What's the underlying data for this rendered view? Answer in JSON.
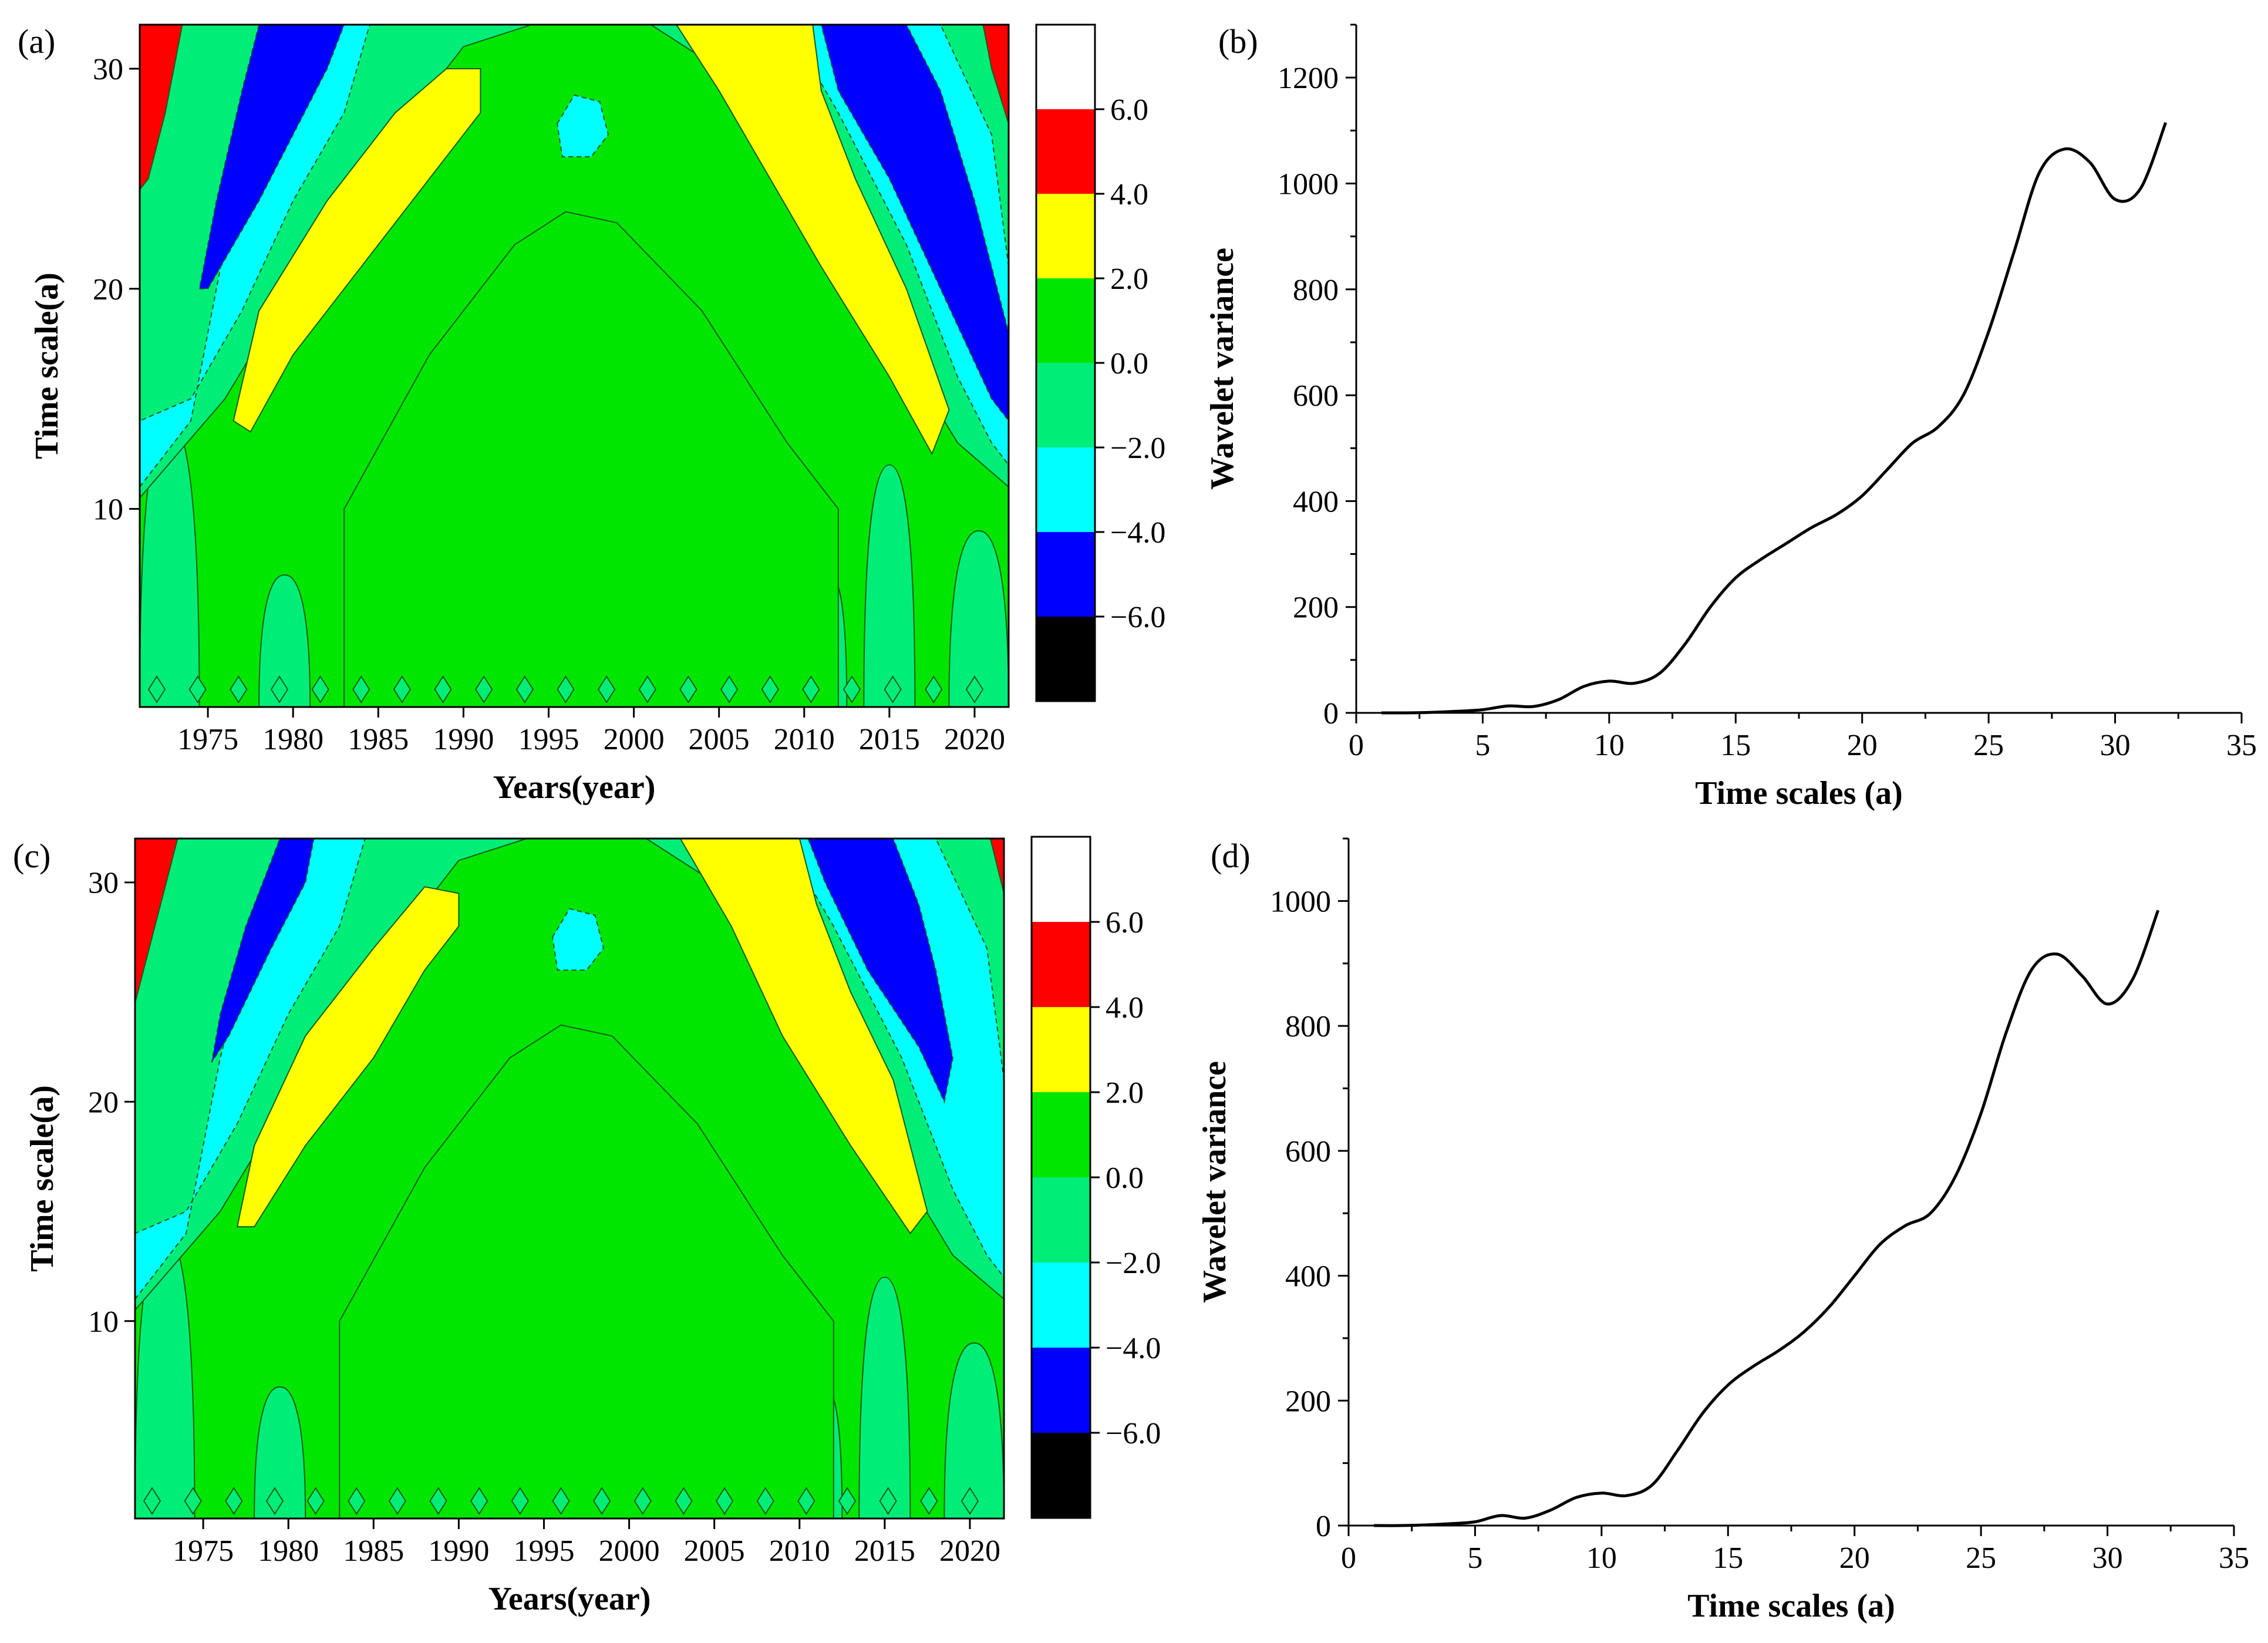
{
  "colors": {
    "white": "#ffffff",
    "red": "#ff0000",
    "yellow": "#ffff00",
    "green": "#00e600",
    "spring": "#00ee77",
    "cyan": "#00ffff",
    "blue": "#0000ff",
    "black": "#000000",
    "line": "#000000"
  },
  "chart_data": [
    {
      "id": "a",
      "type": "heatmap",
      "label": "(a)",
      "title": "",
      "xlabel": "Years(year)",
      "ylabel": "Time scale(a)",
      "xlim": [
        1971,
        2022
      ],
      "ylim": [
        1,
        32
      ],
      "xticks": [
        1975,
        1980,
        1985,
        1990,
        1995,
        2000,
        2005,
        2010,
        2015,
        2020
      ],
      "yticks": [
        10,
        20,
        30
      ],
      "colorbar": {
        "levels": [
          -8,
          -6,
          -4,
          -2,
          0,
          2,
          4,
          6,
          8
        ],
        "tick_labels": [
          "6.0",
          "4.0",
          "2.0",
          "0.0",
          "−2.0",
          "−4.0",
          "−6.0"
        ],
        "colors_bottom_to_top": [
          "#000000",
          "#0000ff",
          "#00ffff",
          "#00ee77",
          "#00e600",
          "#ffff00",
          "#ff0000",
          "#ffffff"
        ]
      },
      "contour_regions": [
        {
          "name": "yellow-left-band",
          "level": "2.0 to 4.0",
          "points": [
            [
              1976.5,
              14
            ],
            [
              1977.5,
              13.5
            ],
            [
              1980,
              17
            ],
            [
              1984,
              21
            ],
            [
              1988,
              25
            ],
            [
              1991,
              28
            ],
            [
              1991,
              30
            ],
            [
              1989,
              30
            ],
            [
              1986,
              28
            ],
            [
              1982,
              24
            ],
            [
              1978,
              19
            ]
          ]
        },
        {
          "name": "yellow-right-band",
          "level": "2.0 to 4.0",
          "points": [
            [
              2002.5,
              32
            ],
            [
              2010.5,
              32
            ],
            [
              2011,
              29
            ],
            [
              2013,
              25
            ],
            [
              2016,
              20
            ],
            [
              2018.5,
              14.5
            ],
            [
              2017.5,
              12.5
            ],
            [
              2015,
              16
            ],
            [
              2011,
              21
            ],
            [
              2008,
              25
            ],
            [
              2005,
              29
            ]
          ]
        },
        {
          "name": "blue-left-band",
          "level": "-4.0 to -6.0",
          "points": [
            [
              1978,
              32
            ],
            [
              1983,
              32
            ],
            [
              1982,
              30
            ],
            [
              1980,
              27
            ],
            [
              1978,
              24
            ],
            [
              1975,
              20
            ],
            [
              1974.5,
              20
            ],
            [
              1975.5,
              24
            ],
            [
              1977,
              29
            ]
          ]
        },
        {
          "name": "blue-right-band",
          "level": "-4.0 to -6.0",
          "points": [
            [
              2011,
              32
            ],
            [
              2016,
              32
            ],
            [
              2018,
              29
            ],
            [
              2020,
              24
            ],
            [
              2022,
              18
            ],
            [
              2022,
              14
            ],
            [
              2021,
              15
            ],
            [
              2018,
              20
            ],
            [
              2015,
              25
            ],
            [
              2012,
              29
            ]
          ]
        },
        {
          "name": "red-left-corner",
          "level": "4.0 to 6.0",
          "points": [
            [
              1971,
              32
            ],
            [
              1973.5,
              32
            ],
            [
              1972.5,
              28
            ],
            [
              1971.5,
              25
            ],
            [
              1971,
              24.5
            ]
          ]
        },
        {
          "name": "red-right-corner",
          "level": "4.0 to 6.0",
          "points": [
            [
              2020.5,
              32
            ],
            [
              2022,
              32
            ],
            [
              2022,
              27.5
            ],
            [
              2021,
              30
            ]
          ]
        },
        {
          "name": "cyan-center-eye",
          "level": "-2.0 to -4.0",
          "points": [
            [
              1995.5,
              27.5
            ],
            [
              1996.5,
              28.8
            ],
            [
              1998,
              28.5
            ],
            [
              1998.5,
              27
            ],
            [
              1997.5,
              26
            ],
            [
              1995.8,
              26
            ]
          ]
        }
      ]
    },
    {
      "id": "b",
      "type": "line",
      "label": "(b)",
      "title": "",
      "xlabel": "Time scales (a)",
      "ylabel": "Wavelet variance",
      "xlim": [
        0,
        35
      ],
      "ylim": [
        0,
        1300
      ],
      "xticks": [
        0,
        5,
        10,
        15,
        20,
        25,
        30,
        35
      ],
      "yticks": [
        0,
        200,
        400,
        600,
        800,
        1000,
        1200
      ],
      "series": [
        {
          "name": "Wavelet variance",
          "x": [
            1,
            2,
            3,
            4,
            5,
            6,
            7,
            8,
            9,
            10,
            11,
            12,
            13,
            14,
            15,
            16,
            17,
            18,
            19,
            20,
            21,
            22,
            23,
            24,
            25,
            26,
            27,
            28,
            29,
            30,
            31,
            32
          ],
          "values": [
            0,
            0,
            1,
            3,
            6,
            13,
            12,
            25,
            50,
            60,
            56,
            75,
            130,
            200,
            255,
            290,
            320,
            350,
            375,
            410,
            460,
            510,
            540,
            600,
            720,
            870,
            1020,
            1065,
            1040,
            970,
            990,
            1115
          ]
        }
      ]
    },
    {
      "id": "c",
      "type": "heatmap",
      "label": "(c)",
      "title": "",
      "xlabel": "Years(year)",
      "ylabel": "Time scale(a)",
      "xlim": [
        1971,
        2022
      ],
      "ylim": [
        1,
        32
      ],
      "xticks": [
        1975,
        1980,
        1985,
        1990,
        1995,
        2000,
        2005,
        2010,
        2015,
        2020
      ],
      "yticks": [
        10,
        20,
        30
      ],
      "colorbar": {
        "levels": [
          -8,
          -6,
          -4,
          -2,
          0,
          2,
          4,
          6,
          8
        ],
        "tick_labels": [
          "6.0",
          "4.0",
          "2.0",
          "0.0",
          "−2.0",
          "−4.0",
          "−6.0"
        ],
        "colors_bottom_to_top": [
          "#000000",
          "#0000ff",
          "#00ffff",
          "#00ee77",
          "#00e600",
          "#ffff00",
          "#ff0000",
          "#ffffff"
        ]
      },
      "contour_regions": [
        {
          "name": "yellow-left-band",
          "level": "2.0 to 4.0",
          "points": [
            [
              1977,
              14.3
            ],
            [
              1978,
              14.3
            ],
            [
              1981,
              18
            ],
            [
              1985,
              22
            ],
            [
              1988,
              26
            ],
            [
              1990,
              28
            ],
            [
              1990,
              29.5
            ],
            [
              1988,
              29.8
            ],
            [
              1985,
              27
            ],
            [
              1981,
              23
            ],
            [
              1978,
              18
            ]
          ]
        },
        {
          "name": "yellow-right-band",
          "level": "2.0 to 4.0",
          "points": [
            [
              2003,
              32
            ],
            [
              2010,
              32
            ],
            [
              2011,
              29
            ],
            [
              2013,
              25
            ],
            [
              2015.5,
              21
            ],
            [
              2017.5,
              15
            ],
            [
              2016.5,
              14
            ],
            [
              2013,
              18
            ],
            [
              2009,
              23
            ],
            [
              2006,
              28
            ]
          ]
        },
        {
          "name": "blue-left-band",
          "level": "-4.0 to -6.0",
          "points": [
            [
              1979.5,
              32
            ],
            [
              1981.5,
              32
            ],
            [
              1981,
              30
            ],
            [
              1979,
              27
            ],
            [
              1976.5,
              23
            ],
            [
              1975.5,
              21.8
            ],
            [
              1976,
              24
            ],
            [
              1977.5,
              28
            ]
          ]
        },
        {
          "name": "blue-right-band",
          "level": "-4.0 to -6.0",
          "points": [
            [
              2010.5,
              32
            ],
            [
              2015.5,
              32
            ],
            [
              2017,
              29
            ],
            [
              2018,
              26
            ],
            [
              2019,
              22
            ],
            [
              2018.5,
              20
            ],
            [
              2017,
              22.5
            ],
            [
              2014,
              26
            ],
            [
              2011.5,
              30
            ]
          ]
        },
        {
          "name": "red-left-corner",
          "level": "4.0 to 6.0",
          "points": [
            [
              1971,
              32
            ],
            [
              1973.5,
              32
            ],
            [
              1972.5,
              29
            ],
            [
              1971.5,
              26
            ],
            [
              1971,
              24.5
            ]
          ]
        },
        {
          "name": "red-right-corner",
          "level": "4.0 to 6.0",
          "points": [
            [
              2021.2,
              32
            ],
            [
              2022,
              32
            ],
            [
              2022,
              29.5
            ]
          ]
        },
        {
          "name": "cyan-center-eye",
          "level": "-2.0 to -4.0",
          "points": [
            [
              1995.5,
              27.5
            ],
            [
              1996.5,
              28.8
            ],
            [
              1998,
              28.5
            ],
            [
              1998.5,
              27
            ],
            [
              1997.5,
              26
            ],
            [
              1995.8,
              26
            ]
          ]
        }
      ]
    },
    {
      "id": "d",
      "type": "line",
      "label": "(d)",
      "title": "",
      "xlabel": "Time scales (a)",
      "ylabel": "Wavelet variance",
      "xlim": [
        0,
        35
      ],
      "ylim": [
        0,
        1100
      ],
      "xticks": [
        0,
        5,
        10,
        15,
        20,
        25,
        30,
        35
      ],
      "yticks": [
        0,
        200,
        400,
        600,
        800,
        1000
      ],
      "series": [
        {
          "name": "Wavelet variance",
          "x": [
            1,
            2,
            3,
            4,
            5,
            6,
            7,
            8,
            9,
            10,
            11,
            12,
            13,
            14,
            15,
            16,
            17,
            18,
            19,
            20,
            21,
            22,
            23,
            24,
            25,
            26,
            27,
            28,
            29,
            30,
            31,
            32
          ],
          "values": [
            0,
            0,
            1,
            3,
            6,
            16,
            12,
            25,
            45,
            52,
            48,
            65,
            120,
            180,
            225,
            255,
            280,
            310,
            350,
            400,
            450,
            480,
            500,
            560,
            660,
            790,
            890,
            915,
            880,
            835,
            875,
            985
          ]
        }
      ]
    }
  ]
}
